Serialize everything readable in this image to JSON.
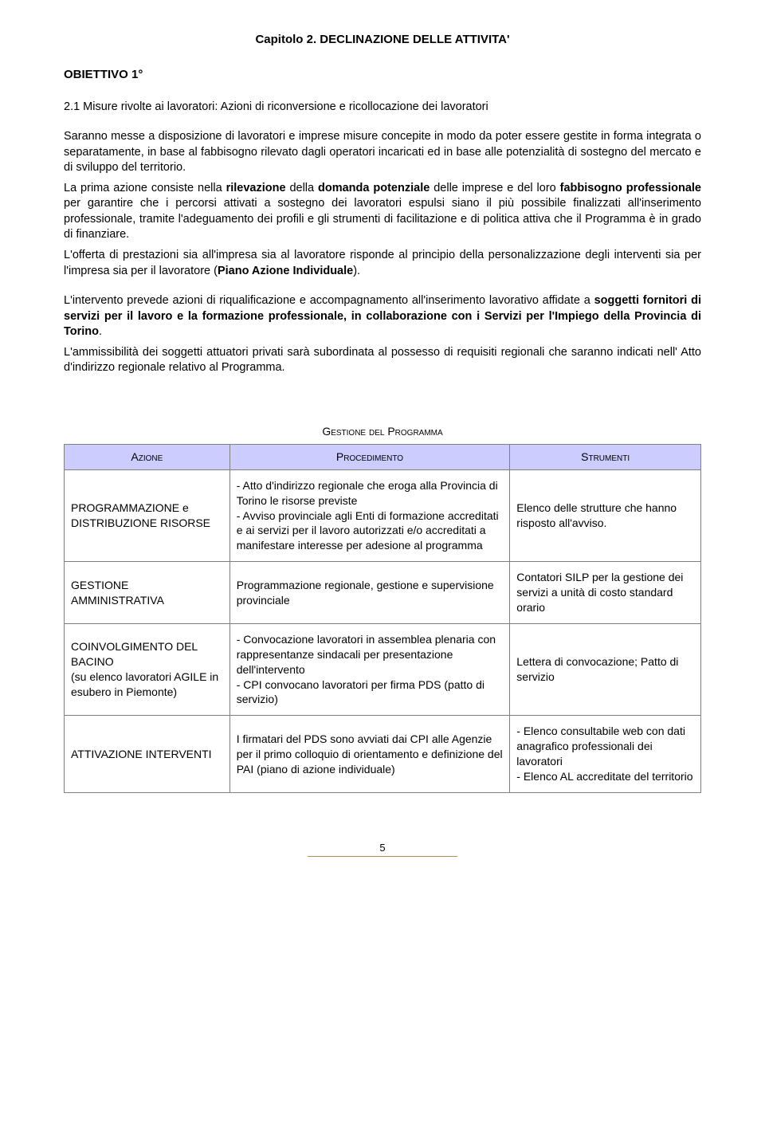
{
  "chapter_title": "Capitolo 2. DECLINAZIONE DELLE ATTIVITA'",
  "obiettivo": "OBIETTIVO 1°",
  "section": {
    "num": "2.1 Misure rivolte ai lavoratori:",
    "rest": "  Azioni di riconversione e ricollocazione dei lavoratori"
  },
  "para1_a": "Saranno messe a disposizione di lavoratori e imprese misure concepite in modo da poter essere gestite in forma integrata o separatamente, in base al fabbisogno rilevato dagli operatori incaricati ed in base alle potenzialità di sostegno del mercato e di sviluppo del territorio.",
  "para1_b1": "La prima azione consiste nella ",
  "para1_b2": "rilevazione",
  "para1_b3": " della ",
  "para1_b4": "domanda potenziale",
  "para1_b5": " delle imprese e del loro ",
  "para1_b6": "fabbisogno professionale",
  "para1_b7": " per garantire che i percorsi attivati a sostegno dei lavoratori espulsi siano il più possibile finalizzati all'inserimento professionale, tramite l'adeguamento dei profili e gli strumenti di facilitazione e di politica attiva che il Programma è in grado di finanziare.",
  "para1_c1": "L'offerta di prestazioni sia all'impresa sia al lavoratore risponde al principio della personalizzazione degli interventi sia per l'impresa sia per il lavoratore (",
  "para1_c2": "Piano Azione Individuale",
  "para1_c3": ").",
  "para2_a1": "L'intervento prevede azioni di riqualificazione e accompagnamento all'inserimento lavorativo affidate a ",
  "para2_a2": "soggetti fornitori di servizi per il lavoro e la formazione professionale, in collaborazione con i Servizi per l'Impiego della Provincia di Torino",
  "para2_a3": ".",
  "para2_b": "L'ammissibilità dei soggetti attuatori privati sarà subordinata al possesso di requisiti regionali che saranno indicati nell' Atto d'indirizzo regionale relativo al Programma.",
  "table_title": "Gestione del Programma",
  "headers": {
    "c1": "Azione",
    "c2": "Procedimento",
    "c3": "Strumenti"
  },
  "rows": [
    {
      "azione": "PROGRAMMAZIONE e DISTRIBUZIONE RISORSE",
      "proc": "- Atto d'indirizzo regionale che eroga alla Provincia di Torino le risorse previste\n- Avviso provinciale agli Enti di formazione accreditati e ai servizi per il lavoro autorizzati e/o accreditati a manifestare interesse per adesione al programma",
      "strum": "Elenco delle strutture che hanno risposto all'avviso."
    },
    {
      "azione": "GESTIONE AMMINISTRATIVA",
      "proc": "Programmazione regionale, gestione e supervisione provinciale",
      "strum": "Contatori SILP per la gestione dei servizi a unità di costo standard orario"
    },
    {
      "azione": "COINVOLGIMENTO DEL BACINO\n(su elenco lavoratori AGILE in esubero in Piemonte)",
      "proc": "- Convocazione lavoratori in assemblea plenaria con rappresentanze sindacali per presentazione dell'intervento\n- CPI convocano lavoratori per firma PDS (patto di servizio)",
      "strum": "Lettera di convocazione; Patto di servizio"
    },
    {
      "azione": "ATTIVAZIONE INTERVENTI",
      "proc": "I firmatari del PDS sono avviati dai CPI alle Agenzie per il primo colloquio di orientamento e definizione del PAI (piano di azione individuale)",
      "strum": "- Elenco consultabile web con dati anagrafico professionali dei lavoratori\n- Elenco AL accreditate del territorio"
    }
  ],
  "page_number": "5"
}
